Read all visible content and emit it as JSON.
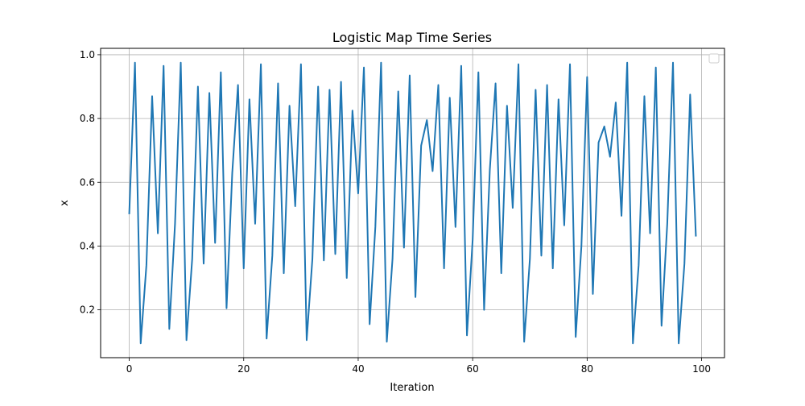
{
  "chart_data": {
    "type": "line",
    "title": "Logistic Map Time Series",
    "xlabel": "Iteration",
    "ylabel": "x",
    "xlim": [
      -5,
      104
    ],
    "ylim": [
      0.05,
      1.02
    ],
    "xticks": [
      0,
      20,
      40,
      60,
      80,
      100
    ],
    "yticks": [
      0.2,
      0.4,
      0.6,
      0.8,
      1.0
    ],
    "xtick_labels": [
      "0",
      "20",
      "40",
      "60",
      "80",
      "100"
    ],
    "ytick_labels": [
      "0.2",
      "0.4",
      "0.6",
      "0.8",
      "1.0"
    ],
    "grid": true,
    "legend": "top-right, empty",
    "series": [
      {
        "color": "#1f77b4",
        "x": [
          0,
          1,
          2,
          3,
          4,
          5,
          6,
          7,
          8,
          9,
          10,
          11,
          12,
          13,
          14,
          15,
          16,
          17,
          18,
          19,
          20,
          21,
          22,
          23,
          24,
          25,
          26,
          27,
          28,
          29,
          30,
          31,
          32,
          33,
          34,
          35,
          36,
          37,
          38,
          39,
          40,
          41,
          42,
          43,
          44,
          45,
          46,
          47,
          48,
          49,
          50,
          51,
          52,
          53,
          54,
          55,
          56,
          57,
          58,
          59,
          60,
          61,
          62,
          63,
          64,
          65,
          66,
          67,
          68,
          69,
          70,
          71,
          72,
          73,
          74,
          75,
          76,
          77,
          78,
          79,
          80,
          81,
          82,
          83,
          84,
          85,
          86,
          87,
          88,
          89,
          90,
          91,
          92,
          93,
          94,
          95,
          96,
          97,
          98,
          99
        ],
        "values": [
          0.5,
          0.975,
          0.095,
          0.34,
          0.87,
          0.44,
          0.965,
          0.14,
          0.47,
          0.975,
          0.105,
          0.36,
          0.9,
          0.345,
          0.88,
          0.41,
          0.945,
          0.205,
          0.63,
          0.905,
          0.33,
          0.86,
          0.47,
          0.97,
          0.11,
          0.37,
          0.91,
          0.315,
          0.84,
          0.525,
          0.97,
          0.105,
          0.36,
          0.9,
          0.355,
          0.89,
          0.375,
          0.915,
          0.3,
          0.825,
          0.565,
          0.96,
          0.155,
          0.46,
          0.975,
          0.1,
          0.36,
          0.885,
          0.395,
          0.935,
          0.24,
          0.715,
          0.795,
          0.635,
          0.905,
          0.33,
          0.865,
          0.46,
          0.965,
          0.12,
          0.42,
          0.945,
          0.2,
          0.64,
          0.91,
          0.315,
          0.84,
          0.52,
          0.97,
          0.1,
          0.36,
          0.89,
          0.37,
          0.905,
          0.33,
          0.86,
          0.465,
          0.97,
          0.115,
          0.4,
          0.93,
          0.25,
          0.725,
          0.775,
          0.68,
          0.85,
          0.495,
          0.975,
          0.095,
          0.34,
          0.87,
          0.44,
          0.96,
          0.15,
          0.47,
          0.975,
          0.095,
          0.345,
          0.875,
          0.43
        ]
      }
    ]
  }
}
